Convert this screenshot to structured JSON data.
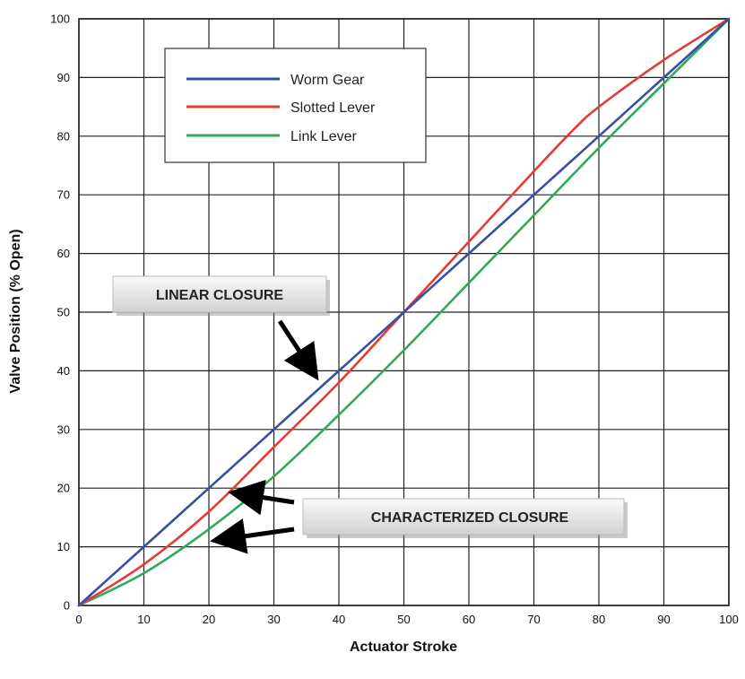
{
  "chart_data": {
    "type": "line",
    "title": "",
    "xlabel": "Actuator Stroke",
    "ylabel": "Valve Position (% Open)",
    "xlim": [
      0,
      100
    ],
    "ylim": [
      0,
      100
    ],
    "x_ticks": [
      "0",
      "10",
      "20",
      "30",
      "40",
      "50",
      "60",
      "70",
      "80",
      "90",
      "100"
    ],
    "y_ticks": [
      "0",
      "10",
      "20",
      "30",
      "40",
      "50",
      "60",
      "70",
      "80",
      "90",
      "100"
    ],
    "grid": true,
    "legend_position": "top-left",
    "series": [
      {
        "name": "Worm Gear",
        "color": "#3a4fa3",
        "x": [
          0,
          10,
          20,
          30,
          40,
          50,
          60,
          70,
          80,
          90,
          100
        ],
        "y": [
          0,
          10,
          20,
          30,
          40,
          50,
          60,
          70,
          80,
          90,
          100
        ]
      },
      {
        "name": "Slotted Lever",
        "color": "#e23c34",
        "x": [
          0,
          10,
          20,
          30,
          40,
          50,
          60,
          70,
          76,
          80,
          90,
          100
        ],
        "y": [
          0,
          7,
          16,
          27,
          38,
          50,
          62,
          74,
          81,
          85,
          93,
          100
        ]
      },
      {
        "name": "Link Lever",
        "color": "#2eaa5a",
        "x": [
          0,
          10,
          20,
          30,
          40,
          50,
          60,
          70,
          80,
          90,
          100
        ],
        "y": [
          0,
          5.5,
          13,
          22,
          32.5,
          43.5,
          55,
          66.5,
          78,
          89,
          100
        ]
      }
    ],
    "annotations": [
      {
        "text": "LINEAR CLOSURE",
        "arrows_to": [
          [
            36.5,
            38.5
          ]
        ]
      },
      {
        "text": "CHARACTERIZED CLOSURE",
        "arrows_to": [
          [
            23.5,
            19.5
          ],
          [
            20.5,
            11
          ]
        ]
      }
    ]
  }
}
